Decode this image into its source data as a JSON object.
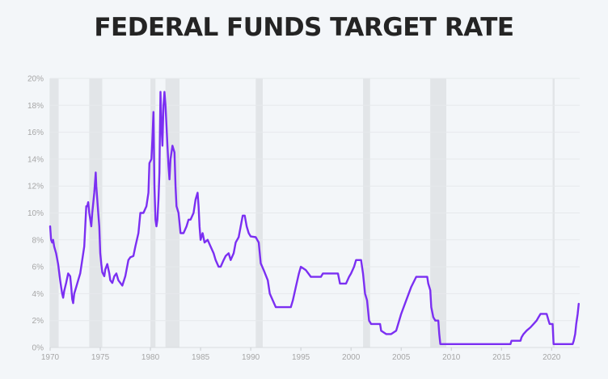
{
  "chart_data": {
    "type": "line",
    "title": "FEDERAL FUNDS TARGET RATE",
    "xlabel": "",
    "ylabel": "",
    "xlim": [
      1970,
      2022.8
    ],
    "ylim": [
      0,
      20
    ],
    "grid": true,
    "x_ticks": [
      1970,
      1975,
      1980,
      1985,
      1990,
      1995,
      2000,
      2005,
      2010,
      2015,
      2020
    ],
    "x_tick_labels": [
      "1970",
      "1975",
      "1980",
      "1985",
      "1990",
      "1995",
      "2000",
      "2005",
      "2010",
      "2015",
      "2020"
    ],
    "y_ticks": [
      0,
      2,
      4,
      6,
      8,
      10,
      12,
      14,
      16,
      18,
      20
    ],
    "y_tick_labels": [
      "0%",
      "2%",
      "4%",
      "6%",
      "8%",
      "10%",
      "12%",
      "14%",
      "16%",
      "18%",
      "20%"
    ],
    "recession_bands": [
      {
        "start": 1969.95,
        "end": 1970.85
      },
      {
        "start": 1973.9,
        "end": 1975.2
      },
      {
        "start": 1980.0,
        "end": 1980.5
      },
      {
        "start": 1981.5,
        "end": 1982.9
      },
      {
        "start": 1990.5,
        "end": 1991.2
      },
      {
        "start": 2001.2,
        "end": 2001.9
      },
      {
        "start": 2007.9,
        "end": 2009.5
      },
      {
        "start": 2020.1,
        "end": 2020.3
      }
    ],
    "series": [
      {
        "name": "",
        "color": "#7b2ff2",
        "points": [
          [
            1970.0,
            9.0
          ],
          [
            1970.1,
            8.0
          ],
          [
            1970.2,
            7.8
          ],
          [
            1970.3,
            8.0
          ],
          [
            1970.4,
            7.5
          ],
          [
            1970.6,
            7.0
          ],
          [
            1970.8,
            6.2
          ],
          [
            1971.0,
            5.0
          ],
          [
            1971.1,
            4.5
          ],
          [
            1971.2,
            4.0
          ],
          [
            1971.3,
            3.7
          ],
          [
            1971.4,
            4.2
          ],
          [
            1971.6,
            4.8
          ],
          [
            1971.8,
            5.5
          ],
          [
            1972.0,
            5.3
          ],
          [
            1972.1,
            4.5
          ],
          [
            1972.2,
            3.6
          ],
          [
            1972.3,
            3.3
          ],
          [
            1972.4,
            4.0
          ],
          [
            1972.6,
            4.5
          ],
          [
            1972.8,
            5.0
          ],
          [
            1973.0,
            5.5
          ],
          [
            1973.2,
            6.5
          ],
          [
            1973.4,
            7.5
          ],
          [
            1973.6,
            10.5
          ],
          [
            1973.7,
            10.5
          ],
          [
            1973.8,
            10.8
          ],
          [
            1973.9,
            10.0
          ],
          [
            1974.1,
            9.0
          ],
          [
            1974.2,
            10.0
          ],
          [
            1974.4,
            11.5
          ],
          [
            1974.5,
            12.5
          ],
          [
            1974.55,
            13.0
          ],
          [
            1974.6,
            12.0
          ],
          [
            1974.8,
            10.0
          ],
          [
            1974.9,
            9.0
          ],
          [
            1975.0,
            7.0
          ],
          [
            1975.1,
            6.2
          ],
          [
            1975.2,
            5.6
          ],
          [
            1975.4,
            5.3
          ],
          [
            1975.5,
            5.8
          ],
          [
            1975.7,
            6.2
          ],
          [
            1975.9,
            5.5
          ],
          [
            1976.0,
            5.0
          ],
          [
            1976.2,
            4.8
          ],
          [
            1976.4,
            5.3
          ],
          [
            1976.6,
            5.5
          ],
          [
            1976.8,
            5.0
          ],
          [
            1977.0,
            4.8
          ],
          [
            1977.2,
            4.6
          ],
          [
            1977.5,
            5.3
          ],
          [
            1977.8,
            6.5
          ],
          [
            1978.0,
            6.7
          ],
          [
            1978.3,
            6.8
          ],
          [
            1978.5,
            7.5
          ],
          [
            1978.8,
            8.5
          ],
          [
            1979.0,
            10.0
          ],
          [
            1979.3,
            10.0
          ],
          [
            1979.6,
            10.5
          ],
          [
            1979.8,
            11.5
          ],
          [
            1979.9,
            13.7
          ],
          [
            1980.1,
            14.0
          ],
          [
            1980.2,
            15.5
          ],
          [
            1980.3,
            17.5
          ],
          [
            1980.4,
            12.0
          ],
          [
            1980.5,
            9.5
          ],
          [
            1980.6,
            9.0
          ],
          [
            1980.7,
            9.5
          ],
          [
            1980.8,
            11.0
          ],
          [
            1980.9,
            13.0
          ],
          [
            1980.95,
            16.0
          ],
          [
            1981.0,
            19.0
          ],
          [
            1981.1,
            16.5
          ],
          [
            1981.2,
            15.0
          ],
          [
            1981.3,
            18.0
          ],
          [
            1981.4,
            19.0
          ],
          [
            1981.5,
            18.0
          ],
          [
            1981.6,
            16.5
          ],
          [
            1981.7,
            15.0
          ],
          [
            1981.8,
            13.5
          ],
          [
            1981.9,
            12.5
          ],
          [
            1982.0,
            14.0
          ],
          [
            1982.2,
            15.0
          ],
          [
            1982.4,
            14.5
          ],
          [
            1982.5,
            12.0
          ],
          [
            1982.6,
            10.5
          ],
          [
            1982.8,
            10.0
          ],
          [
            1983.0,
            8.5
          ],
          [
            1983.3,
            8.5
          ],
          [
            1983.6,
            9.0
          ],
          [
            1983.8,
            9.5
          ],
          [
            1984.0,
            9.5
          ],
          [
            1984.3,
            10.0
          ],
          [
            1984.5,
            11.0
          ],
          [
            1984.7,
            11.5
          ],
          [
            1984.8,
            10.5
          ],
          [
            1984.9,
            9.0
          ],
          [
            1985.0,
            8.0
          ],
          [
            1985.2,
            8.5
          ],
          [
            1985.4,
            7.8
          ],
          [
            1985.7,
            8.0
          ],
          [
            1986.0,
            7.5
          ],
          [
            1986.3,
            7.0
          ],
          [
            1986.5,
            6.5
          ],
          [
            1986.8,
            6.0
          ],
          [
            1987.0,
            6.0
          ],
          [
            1987.3,
            6.5
          ],
          [
            1987.5,
            6.8
          ],
          [
            1987.8,
            7.0
          ],
          [
            1988.0,
            6.5
          ],
          [
            1988.3,
            7.0
          ],
          [
            1988.5,
            7.8
          ],
          [
            1988.8,
            8.2
          ],
          [
            1989.0,
            9.0
          ],
          [
            1989.2,
            9.8
          ],
          [
            1989.4,
            9.8
          ],
          [
            1989.6,
            9.0
          ],
          [
            1989.8,
            8.5
          ],
          [
            1990.0,
            8.25
          ],
          [
            1990.5,
            8.2
          ],
          [
            1990.8,
            7.8
          ],
          [
            1991.0,
            6.25
          ],
          [
            1991.3,
            5.75
          ],
          [
            1991.7,
            5.0
          ],
          [
            1991.9,
            4.0
          ],
          [
            1992.2,
            3.5
          ],
          [
            1992.5,
            3.0
          ],
          [
            1993.0,
            3.0
          ],
          [
            1993.5,
            3.0
          ],
          [
            1994.0,
            3.0
          ],
          [
            1994.2,
            3.5
          ],
          [
            1994.5,
            4.5
          ],
          [
            1994.8,
            5.5
          ],
          [
            1995.0,
            6.0
          ],
          [
            1995.5,
            5.75
          ],
          [
            1996.0,
            5.25
          ],
          [
            1997.0,
            5.25
          ],
          [
            1997.2,
            5.5
          ],
          [
            1998.0,
            5.5
          ],
          [
            1998.7,
            5.5
          ],
          [
            1998.9,
            4.75
          ],
          [
            1999.5,
            4.75
          ],
          [
            1999.8,
            5.25
          ],
          [
            2000.0,
            5.5
          ],
          [
            2000.3,
            6.0
          ],
          [
            2000.5,
            6.5
          ],
          [
            2001.0,
            6.5
          ],
          [
            2001.2,
            5.5
          ],
          [
            2001.4,
            4.0
          ],
          [
            2001.6,
            3.5
          ],
          [
            2001.8,
            2.0
          ],
          [
            2002.0,
            1.75
          ],
          [
            2002.9,
            1.75
          ],
          [
            2003.0,
            1.25
          ],
          [
            2003.5,
            1.0
          ],
          [
            2004.0,
            1.0
          ],
          [
            2004.5,
            1.25
          ],
          [
            2004.7,
            1.75
          ],
          [
            2005.0,
            2.5
          ],
          [
            2005.5,
            3.5
          ],
          [
            2006.0,
            4.5
          ],
          [
            2006.5,
            5.25
          ],
          [
            2007.0,
            5.25
          ],
          [
            2007.6,
            5.25
          ],
          [
            2007.7,
            4.75
          ],
          [
            2007.9,
            4.25
          ],
          [
            2008.0,
            3.0
          ],
          [
            2008.2,
            2.25
          ],
          [
            2008.4,
            2.0
          ],
          [
            2008.7,
            2.0
          ],
          [
            2008.8,
            1.0
          ],
          [
            2008.9,
            0.25
          ],
          [
            2015.9,
            0.25
          ],
          [
            2016.0,
            0.5
          ],
          [
            2016.9,
            0.5
          ],
          [
            2017.0,
            0.75
          ],
          [
            2017.2,
            1.0
          ],
          [
            2017.5,
            1.25
          ],
          [
            2017.9,
            1.5
          ],
          [
            2018.2,
            1.75
          ],
          [
            2018.5,
            2.0
          ],
          [
            2018.7,
            2.25
          ],
          [
            2018.9,
            2.5
          ],
          [
            2019.5,
            2.5
          ],
          [
            2019.6,
            2.25
          ],
          [
            2019.7,
            2.0
          ],
          [
            2019.8,
            1.75
          ],
          [
            2020.1,
            1.75
          ],
          [
            2020.2,
            0.25
          ],
          [
            2022.1,
            0.25
          ],
          [
            2022.2,
            0.5
          ],
          [
            2022.35,
            1.0
          ],
          [
            2022.45,
            1.75
          ],
          [
            2022.6,
            2.5
          ],
          [
            2022.7,
            3.25
          ]
        ]
      }
    ]
  }
}
